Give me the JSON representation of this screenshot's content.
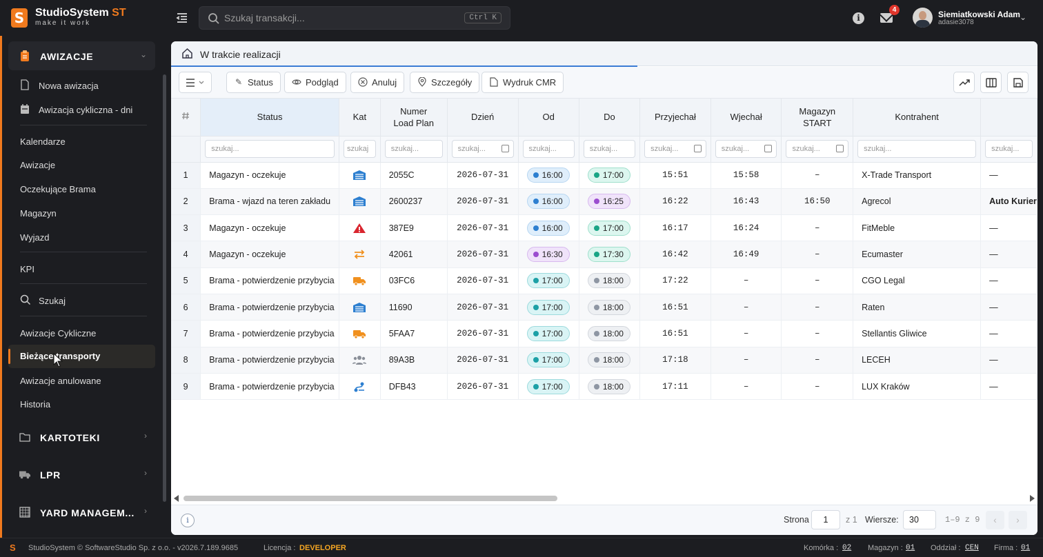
{
  "app": {
    "title": "StudioSystem",
    "title_suffix": "ST",
    "tagline": "make it work"
  },
  "search": {
    "placeholder": "Szukaj transakcji...",
    "shortcut": "Ctrl K"
  },
  "notifications": {
    "count": "4"
  },
  "user": {
    "name": "Siemiatkowski Adam",
    "login": "adasie3078"
  },
  "sidebar": {
    "section_awizacje": "AWIZACJE",
    "sub_items": [
      "Nowa awizacja",
      "Awizacja cykliczna - dni"
    ],
    "items": [
      "Kalendarze",
      "Awizacje",
      "Oczekujące Brama",
      "Magazyn",
      "Wyjazd"
    ],
    "kpi": "KPI",
    "search_label": "Szukaj",
    "items2": [
      "Awizacje Cykliczne",
      "Bieżące transporty",
      "Awizacje anulowane",
      "Historia"
    ],
    "active_index": 1,
    "section_kartoteki": "KARTOTEKI",
    "section_lpr": "LPR",
    "section_yard": "YARD MANAGEM..."
  },
  "breadcrumb": {
    "title": "W trakcie realizacji"
  },
  "toolbar": {
    "status": "Status",
    "preview": "Podgląd",
    "cancel": "Anuluj",
    "details": "Szczegóły",
    "print": "Wydruk CMR"
  },
  "table": {
    "headers": [
      "#",
      "Status",
      "Kat",
      "Numer\nLoad Plan",
      "Dzień",
      "Od",
      "Do",
      "Przyjechał",
      "Wjechał",
      "Magazyn\nSTART",
      "Kontrahent",
      ""
    ],
    "filter_placeholders": [
      "szukaj...",
      "szukaj",
      "szukaj...",
      "szukaj...",
      "szukaj...",
      "szukaj...",
      "szukaj...",
      "szukaj...",
      "szukaj...",
      "szukaj...",
      "szukaj..."
    ],
    "rows": [
      {
        "n": "1",
        "status": "Magazyn - oczekuje",
        "kat": "warehouse-icon",
        "lp": "2055C",
        "day": "2026-07-31",
        "od": "16:00",
        "od_color": "blue",
        "do": "17:00",
        "do_color": "green",
        "przyj": "15:51",
        "wjech": "15:58",
        "mag": "–",
        "kontrahent": "X-Trade Transport",
        "extra": "—"
      },
      {
        "n": "2",
        "status": "Brama - wjazd na teren zakładu",
        "kat": "warehouse-icon",
        "lp": "2600237",
        "day": "2026-07-31",
        "od": "16:00",
        "od_color": "blue",
        "do": "16:25",
        "do_color": "purple",
        "przyj": "16:22",
        "wjech": "16:43",
        "mag": "16:50",
        "kontrahent": "Agrecol",
        "extra": "Auto Kurier"
      },
      {
        "n": "3",
        "status": "Magazyn - oczekuje",
        "kat": "warning-icon",
        "lp": "387E9",
        "day": "2026-07-31",
        "od": "16:00",
        "od_color": "blue",
        "do": "17:00",
        "do_color": "green",
        "przyj": "16:17",
        "wjech": "16:24",
        "mag": "–",
        "kontrahent": "FitMeble",
        "extra": "—"
      },
      {
        "n": "4",
        "status": "Magazyn - oczekuje",
        "kat": "transfer-icon",
        "lp": "42061",
        "day": "2026-07-31",
        "od": "16:30",
        "od_color": "purple",
        "do": "17:30",
        "do_color": "green",
        "przyj": "16:42",
        "wjech": "16:49",
        "mag": "–",
        "kontrahent": "Ecumaster",
        "extra": "—"
      },
      {
        "n": "5",
        "status": "Brama - potwierdzenie przybycia",
        "kat": "truck-icon",
        "lp": "03FC6",
        "day": "2026-07-31",
        "od": "17:00",
        "od_color": "teal",
        "do": "18:00",
        "do_color": "gray",
        "przyj": "17:22",
        "wjech": "–",
        "mag": "–",
        "kontrahent": "CGO Legal",
        "extra": "—"
      },
      {
        "n": "6",
        "status": "Brama - potwierdzenie przybycia",
        "kat": "warehouse-icon",
        "lp": "11690",
        "day": "2026-07-31",
        "od": "17:00",
        "od_color": "teal",
        "do": "18:00",
        "do_color": "gray",
        "przyj": "16:51",
        "wjech": "–",
        "mag": "–",
        "kontrahent": "Raten",
        "extra": "—"
      },
      {
        "n": "7",
        "status": "Brama - potwierdzenie przybycia",
        "kat": "truck-icon",
        "lp": "5FAA7",
        "day": "2026-07-31",
        "od": "17:00",
        "od_color": "teal",
        "do": "18:00",
        "do_color": "gray",
        "przyj": "16:51",
        "wjech": "–",
        "mag": "–",
        "kontrahent": "Stellantis Gliwice",
        "extra": "—"
      },
      {
        "n": "8",
        "status": "Brama - potwierdzenie przybycia",
        "kat": "people-icon",
        "lp": "89A3B",
        "day": "2026-07-31",
        "od": "17:00",
        "od_color": "teal",
        "do": "18:00",
        "do_color": "gray",
        "przyj": "17:18",
        "wjech": "–",
        "mag": "–",
        "kontrahent": "LECEH",
        "extra": "—"
      },
      {
        "n": "9",
        "status": "Brama - potwierdzenie przybycia",
        "kat": "route-icon",
        "lp": "DFB43",
        "day": "2026-07-31",
        "od": "17:00",
        "od_color": "teal",
        "do": "18:00",
        "do_color": "gray",
        "przyj": "17:11",
        "wjech": "–",
        "mag": "–",
        "kontrahent": "LUX Kraków",
        "extra": "—"
      }
    ]
  },
  "pagination": {
    "page_label": "Strona",
    "page": "1",
    "of": "z 1",
    "rows_label": "Wiersze:",
    "rows": "30",
    "range": "1–9 z 9"
  },
  "statusbar": {
    "copyright": "StudioSystem © SoftwareStudio Sp. z o.o. - v2026.7.189.9685",
    "license_label": "Licencja :",
    "license": "DEVELOPER",
    "cell_label": "Komórka :",
    "cell": "02",
    "warehouse_label": "Magazyn :",
    "warehouse": "01",
    "branch_label": "Oddział :",
    "branch": "CEN",
    "company_label": "Firma :",
    "company": "01"
  },
  "colors": {
    "accent": "#f07a1e",
    "primary": "#3a7bd5",
    "kat_blue": "#2d7fd0",
    "kat_red": "#d9252e",
    "kat_orange": "#f0901e"
  }
}
